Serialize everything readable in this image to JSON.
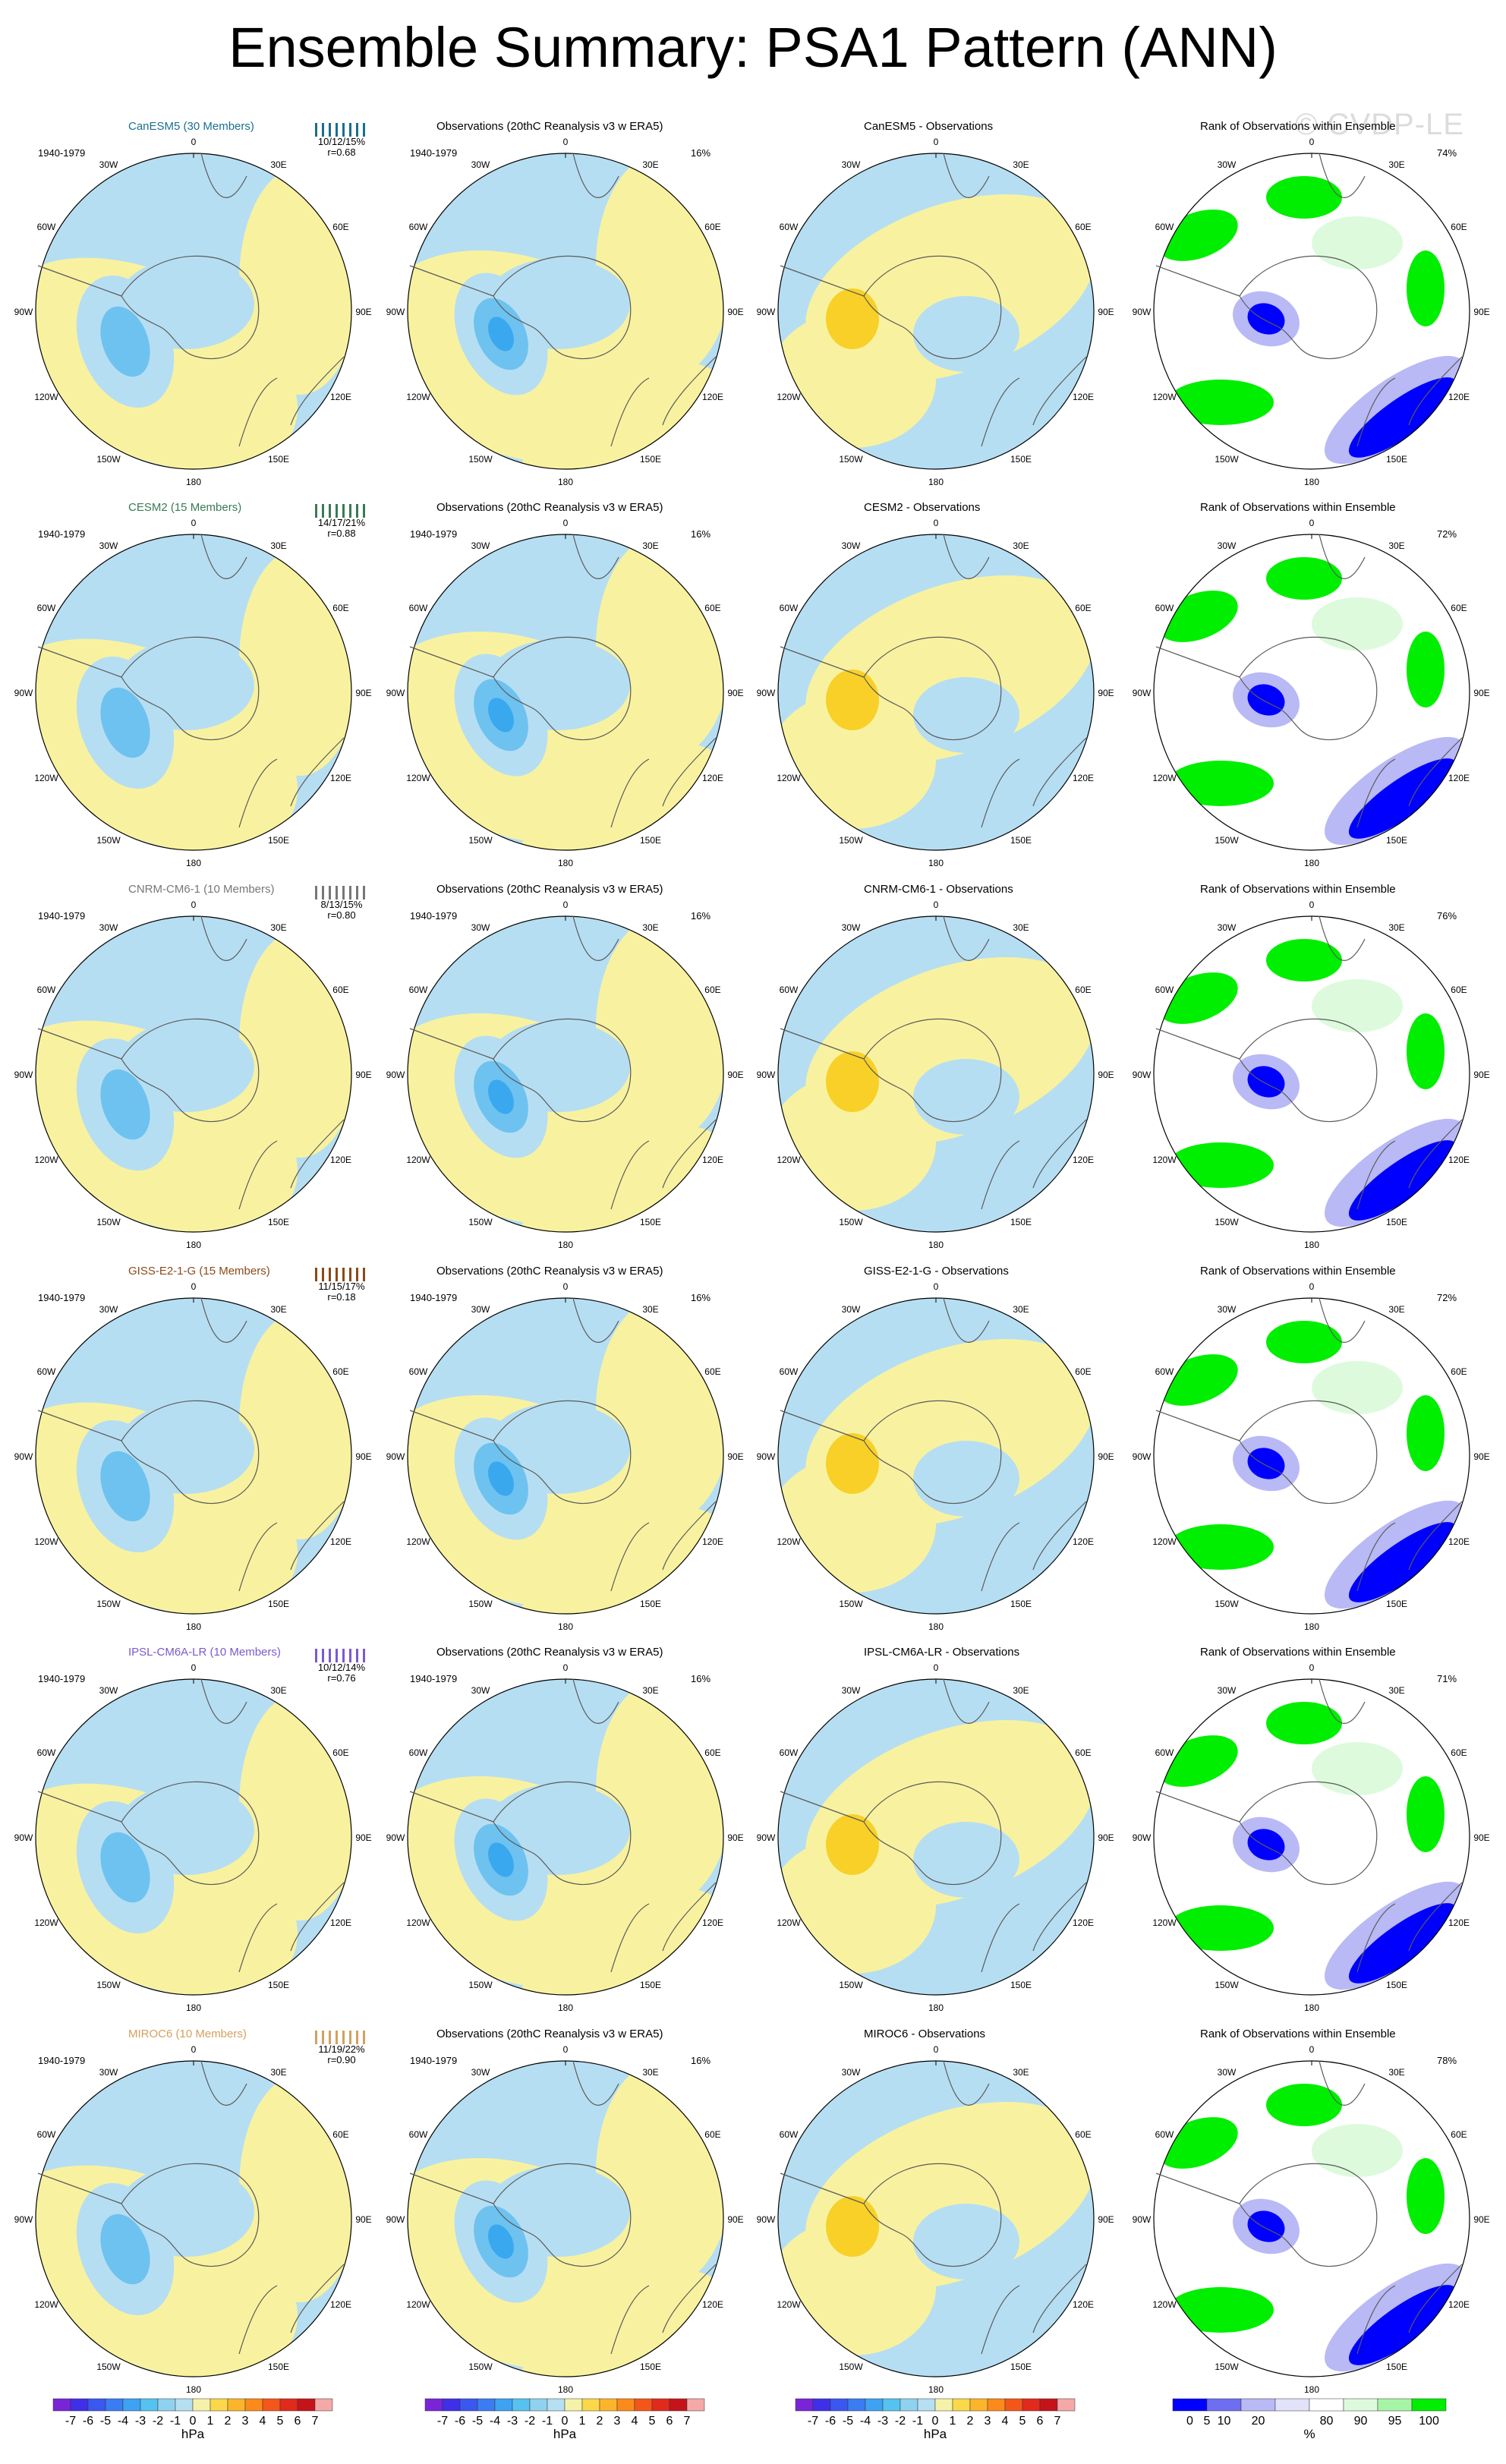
{
  "title": "Ensemble Summary: PSA1 Pattern (ANN)",
  "watermark": "© CVDP-LE",
  "period": "1940-1979",
  "obs_title": "Observations (20thC Reanalysis v3 w ERA5)",
  "obs_pct": "16%",
  "rank_title": "Rank of Observations within Ensemble",
  "lon_labels": [
    "0",
    "30E",
    "60E",
    "90E",
    "120E",
    "150E",
    "180",
    "150W",
    "120W",
    "90W",
    "60W",
    "30W"
  ],
  "rows": [
    {
      "model": "CanESM5 (30 Members)",
      "color": "#1a6f8f",
      "stats": "10/12/15%",
      "r": "r=0.68",
      "diff": "CanESM5 - Observations",
      "rank_pct": "74%"
    },
    {
      "model": "CESM2 (15 Members)",
      "color": "#3a7a55",
      "stats": "14/17/21%",
      "r": "r=0.88",
      "diff": "CESM2 - Observations",
      "rank_pct": "72%"
    },
    {
      "model": "CNRM-CM6-1 (10 Members)",
      "color": "#777777",
      "stats": "8/13/15%",
      "r": "r=0.80",
      "diff": "CNRM-CM6-1 - Observations",
      "rank_pct": "76%"
    },
    {
      "model": "GISS-E2-1-G (15 Members)",
      "color": "#8a4a1a",
      "stats": "11/15/17%",
      "r": "r=0.18",
      "diff": "GISS-E2-1-G - Observations",
      "rank_pct": "72%"
    },
    {
      "model": "IPSL-CM6A-LR (10 Members)",
      "color": "#7a5ad0",
      "stats": "10/12/14%",
      "r": "r=0.76",
      "diff": "IPSL-CM6A-LR - Observations",
      "rank_pct": "71%"
    },
    {
      "model": "MIROC6 (10 Members)",
      "color": "#d4a060",
      "stats": "11/19/22%",
      "r": "r=0.90",
      "diff": "MIROC6 - Observations",
      "rank_pct": "78%"
    }
  ],
  "colorbar_hpa": {
    "labels": [
      "-7",
      "-6",
      "-5",
      "-4",
      "-3",
      "-2",
      "-1",
      "0",
      "1",
      "2",
      "3",
      "4",
      "5",
      "6",
      "7"
    ],
    "unit": "hPa",
    "colors": [
      "#7a24d8",
      "#3f2fe8",
      "#3a58f0",
      "#3b7cf3",
      "#3ea2f3",
      "#56c2f0",
      "#8fd2ef",
      "#b6dff2",
      "#f4f2a8",
      "#fbd84a",
      "#fcb52a",
      "#fb8a1b",
      "#f4561a",
      "#e12a1c",
      "#c4141a",
      "#f4a8a8"
    ]
  },
  "colorbar_rank": {
    "labels": [
      "0",
      "5",
      "10",
      "20",
      "80",
      "90",
      "95",
      "100"
    ],
    "unit": "%",
    "colors": [
      "#0000ff",
      "#6e6ef0",
      "#b9b9f5",
      "#e2e2fa",
      "#ffffff",
      "#ddfadd",
      "#a6f5a6",
      "#00ee00"
    ]
  },
  "colors": {
    "pos": "#f8f2a0",
    "neg": "#b6def2",
    "neg2": "#6ec2f0",
    "neg3": "#3aa8ee",
    "pos2": "#f8d028",
    "pos3": "#f0a018",
    "rank_blue": "#0000ff",
    "rank_lblue": "#b9b9f5",
    "rank_llblue": "#e2e2fa",
    "rank_green": "#00ee00",
    "rank_lgreen": "#ddfadd"
  }
}
